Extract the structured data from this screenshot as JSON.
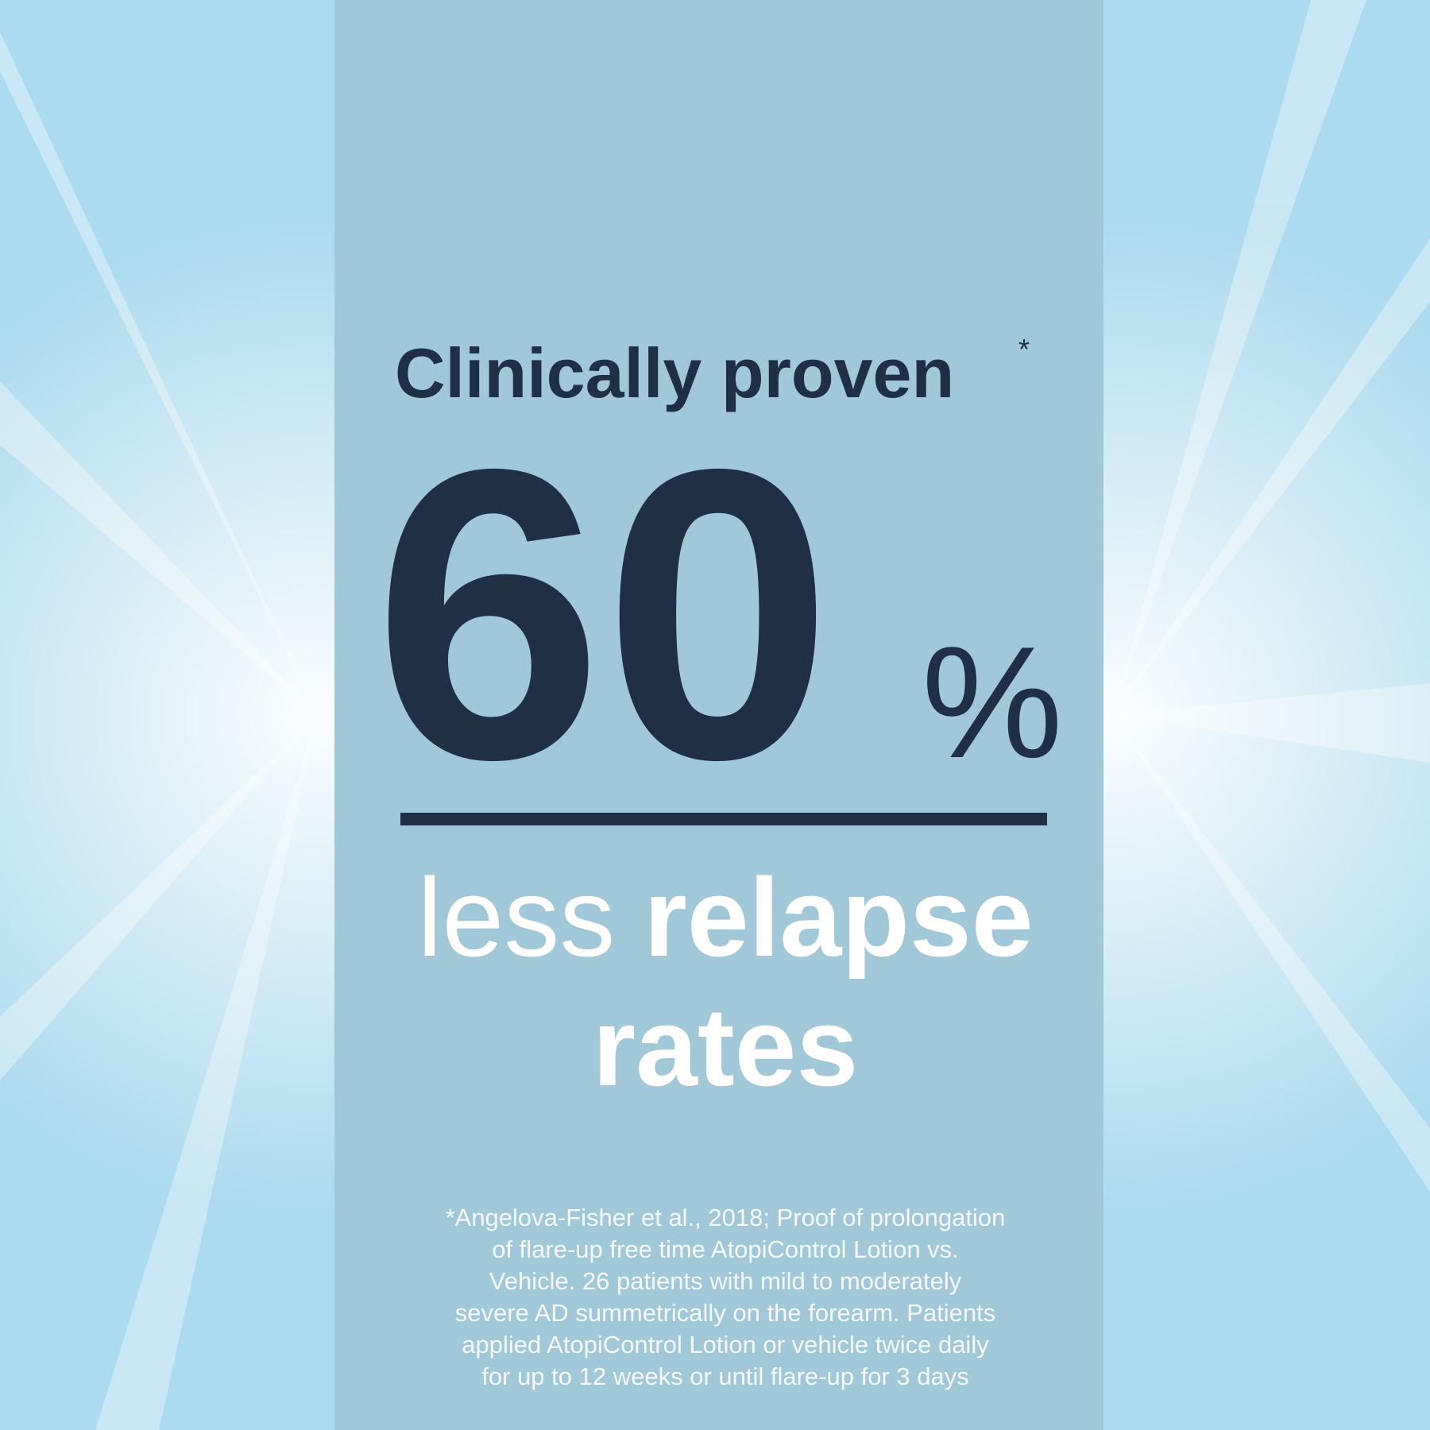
{
  "headline": {
    "text": "Clinically proven",
    "marker": "*"
  },
  "stat": {
    "number": "60",
    "unit": "%"
  },
  "caption": {
    "light": "less",
    "bold": "relapse",
    "line2": "rates"
  },
  "footnote": {
    "lines": [
      "*Angelova-Fisher et al., 2018; Proof of prolongation",
      "of flare-up free time AtopiControl Lotion vs.",
      "Vehicle. 26 patients with mild to moderately",
      "severe AD summetrically on the forearm. Patients",
      "applied AtopiControl Lotion or vehicle twice daily",
      "for up to 12 weeks or until flare-up for 3 days"
    ]
  }
}
